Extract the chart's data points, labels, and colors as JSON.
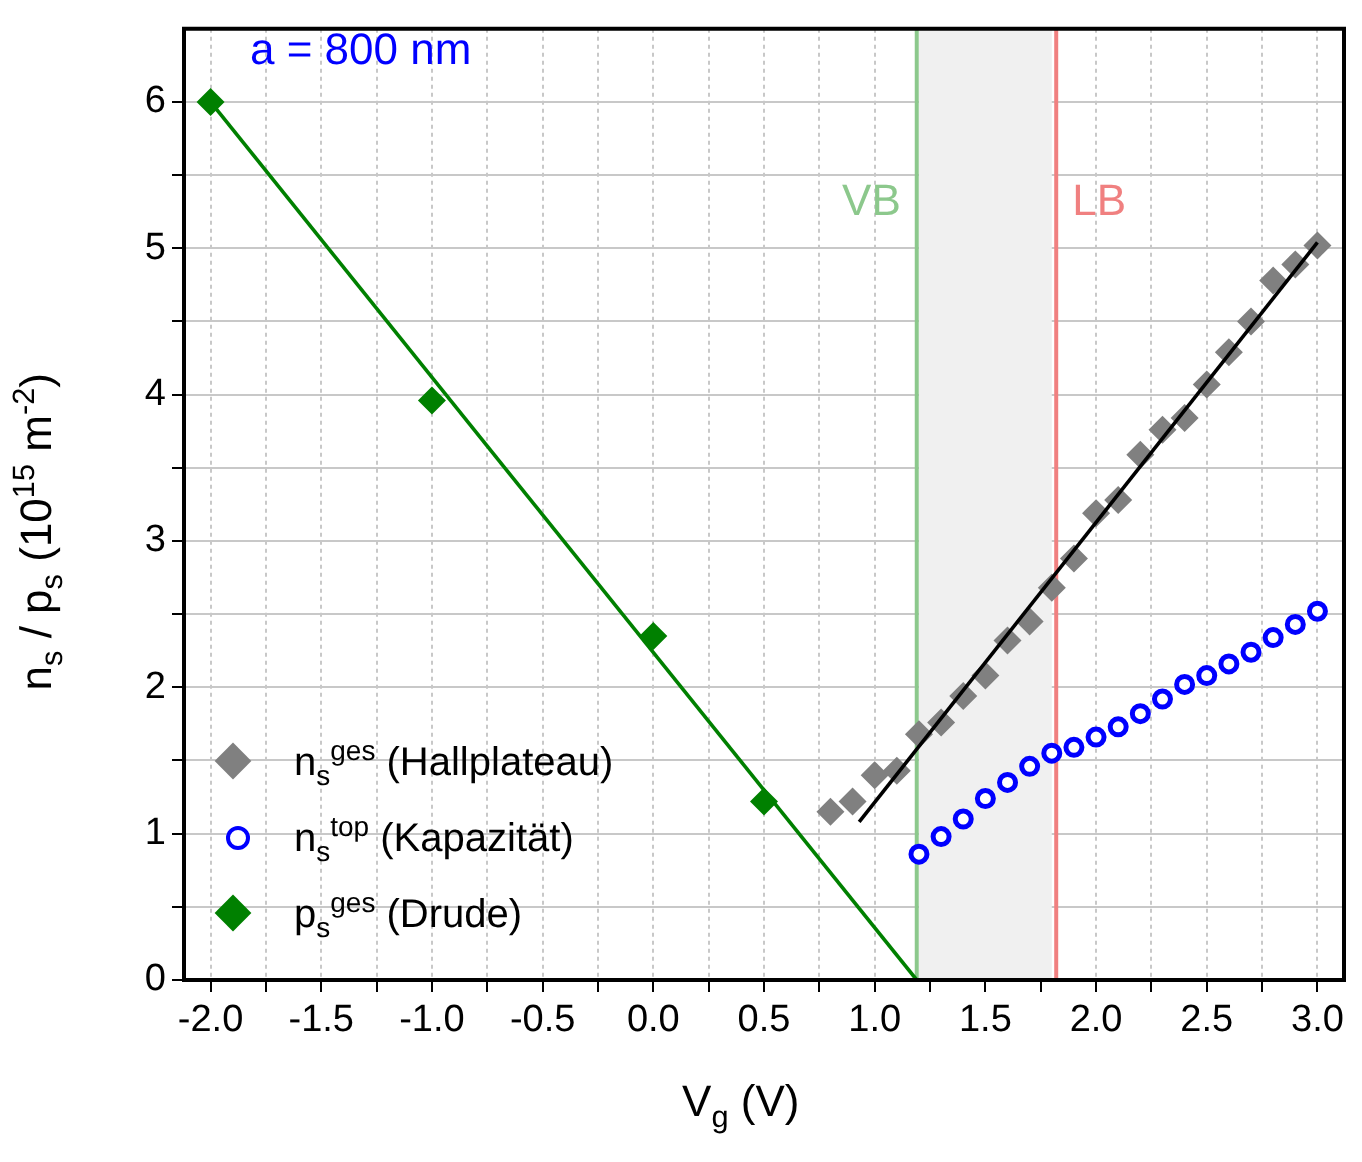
{
  "chart_data": {
    "type": "scatter",
    "xlabel": "V$_{g}$ (V)",
    "ylabel": "n$_{s}$ / p$_{s}$ (10$^{15}$ m$^{-2}$)",
    "annotations": [
      "a = 800 nm"
    ],
    "xlim": [
      -2.12,
      3.12
    ],
    "ylim": [
      0,
      6.5
    ],
    "xticks": [
      {
        "value": -2,
        "label": "-2.0"
      },
      {
        "value": -1.75,
        "label": null
      },
      {
        "value": -1.5,
        "label": "-1.5"
      },
      {
        "value": -1.25,
        "label": null
      },
      {
        "value": -1,
        "label": "-1.0"
      },
      {
        "value": -0.75,
        "label": null
      },
      {
        "value": -0.5,
        "label": "-0.5"
      },
      {
        "value": -0.25,
        "label": null
      },
      {
        "value": 0,
        "label": "0.0"
      },
      {
        "value": 0.25,
        "label": null
      },
      {
        "value": 0.5,
        "label": "0.5"
      },
      {
        "value": 0.75,
        "label": null
      },
      {
        "value": 1,
        "label": "1.0"
      },
      {
        "value": 1.25,
        "label": null
      },
      {
        "value": 1.5,
        "label": "1.5"
      },
      {
        "value": 1.75,
        "label": null
      },
      {
        "value": 2,
        "label": "2.0"
      },
      {
        "value": 2.25,
        "label": null
      },
      {
        "value": 2.5,
        "label": "2.5"
      },
      {
        "value": 2.75,
        "label": null
      },
      {
        "value": 3,
        "label": "3.0"
      }
    ],
    "yticks": [
      0,
      {
        "value": 0.5,
        "label": null
      },
      1,
      {
        "value": 1.5,
        "label": null
      },
      2,
      {
        "value": 2.5,
        "label": null
      },
      3,
      {
        "value": 3.5,
        "label": null
      },
      4,
      {
        "value": 4.5,
        "label": null
      },
      5,
      {
        "value": 5.5,
        "label": null
      },
      6
    ],
    "grid": true,
    "legend": "bottom left",
    "ref_lines": [
      {
        "axis": "x",
        "value": 1.19,
        "label": "VB",
        "color": "#8cc88c"
      },
      {
        "axis": "x",
        "value": 1.82,
        "label": "LB",
        "color": "#f08080"
      }
    ],
    "bands": [
      {
        "axis": "x",
        "from": 1.2,
        "to": 1.8,
        "color": "#f0f0f0"
      }
    ],
    "series": [
      {
        "name": "n$_{s}$$^{ges}$ (Hallplateau)",
        "color": "#808080",
        "marker": "diamond",
        "x": [
          0.8,
          0.9,
          1.0,
          1.1,
          1.2,
          1.3,
          1.4,
          1.5,
          1.6,
          1.7,
          1.8,
          1.9,
          2.0,
          2.1,
          2.2,
          2.3,
          2.4,
          2.5,
          2.6,
          2.7,
          2.8,
          2.9,
          3.0
        ],
        "values": [
          1.15,
          1.22,
          1.4,
          1.43,
          1.68,
          1.76,
          1.94,
          2.08,
          2.32,
          2.45,
          2.68,
          2.88,
          3.19,
          3.28,
          3.59,
          3.76,
          3.84,
          4.07,
          4.29,
          4.5,
          4.78,
          4.89,
          5.02
        ]
      },
      {
        "name": "n$_{s}$$^{top}$ (Kapazität)",
        "color": "#0000ff",
        "marker": "circle",
        "x": [
          1.2,
          1.3,
          1.4,
          1.5,
          1.6,
          1.7,
          1.8,
          1.9,
          2.0,
          2.1,
          2.2,
          2.3,
          2.4,
          2.5,
          2.6,
          2.7,
          2.8,
          2.9,
          3.0
        ],
        "values": [
          0.86,
          0.98,
          1.1,
          1.24,
          1.35,
          1.46,
          1.55,
          1.59,
          1.66,
          1.73,
          1.82,
          1.92,
          2.02,
          2.08,
          2.16,
          2.24,
          2.34,
          2.43,
          2.52
        ]
      },
      {
        "name": "p$_{s}$$^{ges}$ (Drude)",
        "color": "#008000",
        "marker": "diamond",
        "x": [
          -2,
          -1,
          0,
          0.5
        ],
        "values": [
          6.0,
          3.96,
          2.35,
          1.22
        ]
      },
      {
        "type": "line",
        "color": "#000000",
        "marker": "none",
        "x": [
          0.93,
          3.0
        ],
        "values": [
          1.08,
          5.04
        ]
      },
      {
        "type": "line",
        "color": "#008000",
        "marker": "none",
        "x": [
          -2,
          1.19
        ],
        "values": [
          6.0,
          0
        ]
      }
    ]
  }
}
